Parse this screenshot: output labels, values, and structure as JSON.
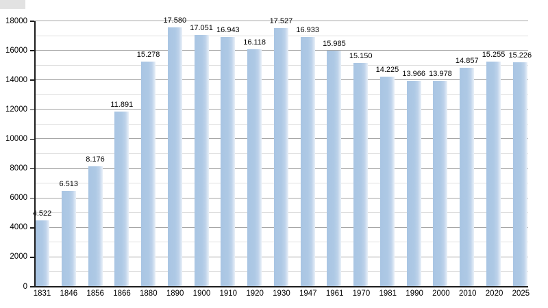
{
  "chart_data": {
    "type": "bar",
    "title": "",
    "xlabel": "",
    "ylabel": "",
    "categories": [
      "1831",
      "1846",
      "1856",
      "1866",
      "1880",
      "1890",
      "1900",
      "1910",
      "1920",
      "1930",
      "1947",
      "1961",
      "1970",
      "1981",
      "1990",
      "2000",
      "2010",
      "2020",
      "2025"
    ],
    "values": [
      4522,
      6513,
      8176,
      11891,
      15278,
      17580,
      17051,
      16943,
      16118,
      17527,
      16933,
      15985,
      15150,
      14225,
      13966,
      13978,
      14857,
      15255,
      15226
    ],
    "value_labels": [
      "4.522",
      "6.513",
      "8.176",
      "11.891",
      "15.278",
      "17.580",
      "17.051",
      "16.943",
      "16.118",
      "17.527",
      "16.933",
      "15.985",
      "15.150",
      "14.225",
      "13.966",
      "13.978",
      "14.857",
      "15.255",
      "15.226"
    ],
    "ylim": [
      0,
      18000
    ],
    "y_major_step": 2000,
    "y_minor_step": 1000,
    "y_tick_labels": [
      "0",
      "2000",
      "4000",
      "6000",
      "8000",
      "10000",
      "12000",
      "14000",
      "16000",
      "18000"
    ],
    "grid": "horizontal",
    "legend": "none",
    "colors": {
      "bar_fill": "#aec9e5",
      "bar_fade": "#e9f0f8",
      "grid_major": "#a3a3a3",
      "grid_minor": "#dedede",
      "axis": "#1c1c1c",
      "text": "#000000",
      "background": "#ffffff",
      "corner_artifact": "#e2e2e2"
    }
  }
}
